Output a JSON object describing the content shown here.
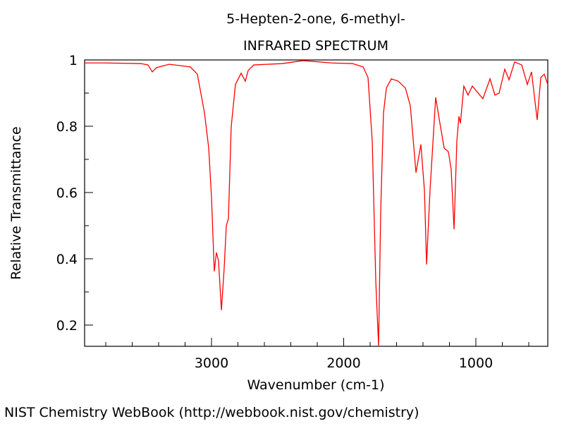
{
  "chart_data": {
    "type": "line",
    "title": "5-Hepten-2-one, 6-methyl-",
    "subtitle": "INFRARED SPECTRUM",
    "x_label": "Wavenumber (cm-1)",
    "y_label": "Relative Transmittance",
    "source": "NIST Chemistry WebBook (http://webbook.nist.gov/chemistry)",
    "xlim": [
      3960,
      456
    ],
    "ylim": [
      0.136,
      1
    ],
    "xticks": [
      3000,
      2000,
      1000
    ],
    "yticks": [
      0.2,
      0.4,
      0.6,
      0.8,
      1
    ],
    "xminorticks": [
      3800,
      3600,
      3400,
      3200,
      2800,
      2600,
      2400,
      2200,
      1800,
      1600,
      1400,
      1200,
      800,
      600
    ],
    "yminorticks": [
      0.3,
      0.5,
      0.7,
      0.9
    ],
    "color": "#ff0000",
    "x": [
      3960,
      3800,
      3533,
      3480,
      3448,
      3416,
      3320,
      3160,
      3107,
      3053,
      3021,
      3000,
      2979,
      2963,
      2947,
      2925,
      2904,
      2888,
      2872,
      2851,
      2819,
      2776,
      2744,
      2723,
      2680,
      2467,
      2307,
      2093,
      1933,
      1853,
      1816,
      1784,
      1757,
      1736,
      1720,
      1699,
      1677,
      1640,
      1587,
      1533,
      1496,
      1453,
      1416,
      1389,
      1373,
      1347,
      1304,
      1272,
      1240,
      1208,
      1187,
      1165,
      1144,
      1128,
      1117,
      1091,
      1059,
      1027,
      947,
      893,
      856,
      824,
      781,
      749,
      707,
      653,
      611,
      579,
      536,
      509,
      483,
      456
    ],
    "values": [
      0.991,
      0.991,
      0.989,
      0.985,
      0.964,
      0.977,
      0.987,
      0.979,
      0.957,
      0.84,
      0.734,
      0.585,
      0.362,
      0.419,
      0.394,
      0.245,
      0.372,
      0.5,
      0.521,
      0.798,
      0.926,
      0.96,
      0.936,
      0.968,
      0.985,
      0.989,
      0.998,
      0.991,
      0.989,
      0.979,
      0.947,
      0.755,
      0.33,
      0.138,
      0.543,
      0.84,
      0.915,
      0.943,
      0.936,
      0.915,
      0.862,
      0.66,
      0.745,
      0.606,
      0.383,
      0.606,
      0.887,
      0.809,
      0.734,
      0.723,
      0.67,
      0.489,
      0.755,
      0.83,
      0.809,
      0.921,
      0.894,
      0.921,
      0.883,
      0.943,
      0.894,
      0.9,
      0.972,
      0.94,
      0.994,
      0.985,
      0.926,
      0.964,
      0.819,
      0.947,
      0.957,
      0.926
    ]
  }
}
